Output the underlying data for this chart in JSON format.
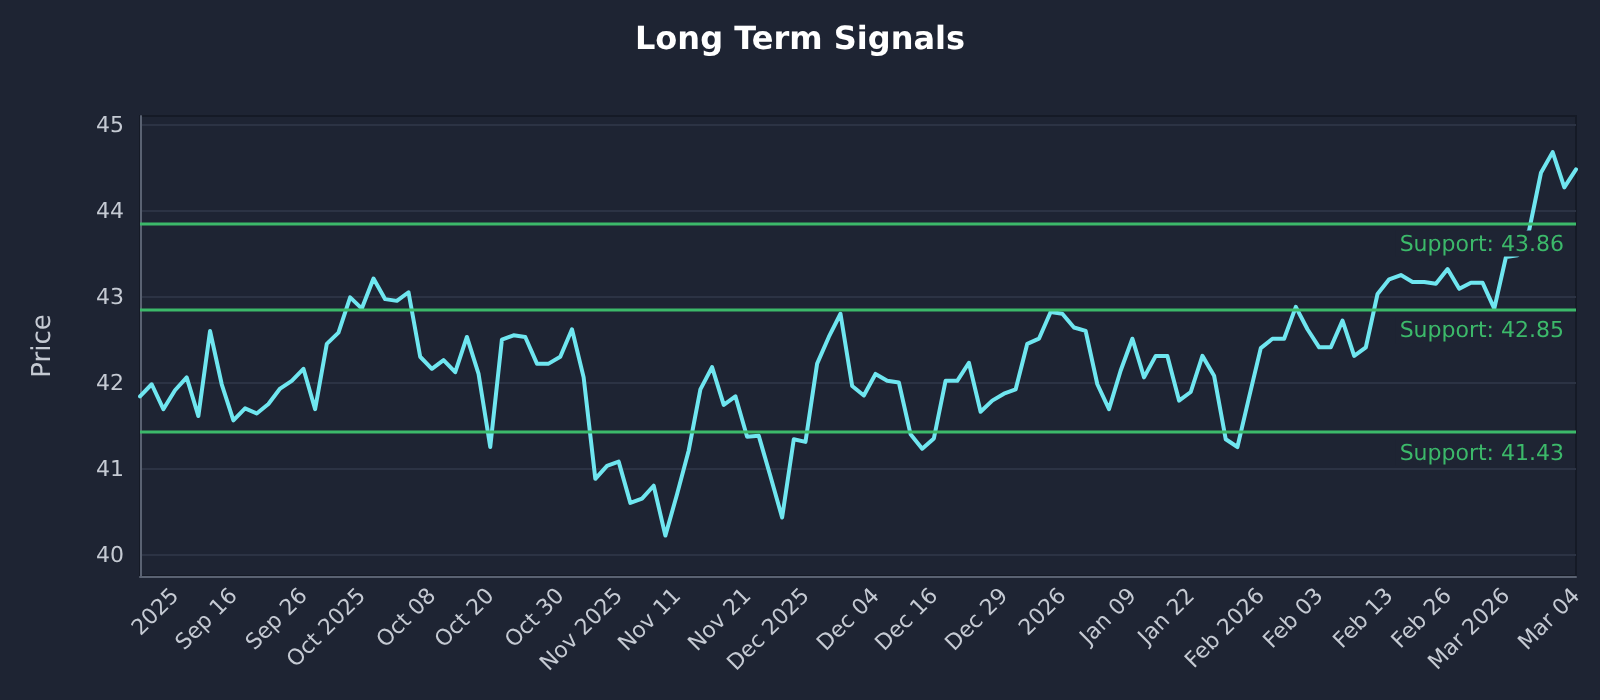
{
  "chart_data": {
    "type": "line",
    "title": "Long Term Signals",
    "ylabel": "Price",
    "categories": [
      null,
      null,
      null,
      "2025",
      null,
      null,
      null,
      null,
      "Sep 16",
      null,
      null,
      null,
      null,
      null,
      "Sep 26",
      null,
      null,
      null,
      null,
      "Oct 2025",
      null,
      null,
      null,
      null,
      null,
      "Oct 08",
      null,
      null,
      null,
      null,
      "Oct 20",
      null,
      null,
      null,
      null,
      null,
      "Oct 30",
      null,
      null,
      null,
      null,
      "Nov 2025",
      null,
      null,
      null,
      null,
      "Nov 11",
      null,
      null,
      null,
      null,
      null,
      "Nov 21",
      null,
      null,
      null,
      null,
      "Dec 2025",
      null,
      null,
      null,
      null,
      null,
      "Dec 04",
      null,
      null,
      null,
      null,
      "Dec 16",
      null,
      null,
      null,
      null,
      null,
      "Dec 29",
      null,
      null,
      null,
      null,
      "2026",
      null,
      null,
      null,
      null,
      null,
      "Jan 09",
      null,
      null,
      null,
      null,
      "Jan 22",
      null,
      null,
      null,
      null,
      null,
      "Feb 2026",
      null,
      null,
      null,
      null,
      "Feb 03",
      null,
      null,
      null,
      null,
      null,
      "Feb 13",
      null,
      null,
      null,
      null,
      "Feb 26",
      null,
      null,
      null,
      null,
      "Mar 2026",
      null,
      null,
      null,
      null,
      null,
      "Mar 04"
    ],
    "series": [
      {
        "color": "#6fe6f0",
        "values": [
          41.84,
          41.98,
          41.69,
          41.91,
          42.06,
          41.61,
          42.6,
          41.98,
          41.56,
          41.7,
          41.64,
          41.75,
          41.93,
          42.02,
          42.16,
          41.69,
          42.45,
          42.58,
          42.99,
          42.86,
          43.21,
          42.97,
          42.95,
          43.05,
          42.3,
          42.16,
          42.26,
          42.12,
          42.53,
          42.1,
          41.25,
          42.5,
          42.55,
          42.53,
          42.22,
          42.22,
          42.3,
          42.62,
          42.06,
          40.88,
          41.03,
          41.08,
          40.6,
          40.65,
          40.8,
          40.22,
          40.7,
          41.21,
          41.92,
          42.18,
          41.74,
          41.84,
          41.37,
          41.38,
          40.91,
          40.43,
          41.34,
          41.31,
          42.22,
          42.53,
          42.8,
          41.96,
          41.85,
          42.1,
          42.02,
          42.0,
          41.4,
          41.23,
          41.35,
          42.02,
          42.02,
          42.23,
          41.66,
          41.79,
          41.87,
          41.92,
          42.45,
          42.51,
          42.82,
          42.8,
          42.64,
          42.6,
          41.98,
          41.69,
          42.14,
          42.51,
          42.06,
          42.31,
          42.31,
          41.79,
          41.89,
          42.31,
          42.08,
          41.34,
          41.25,
          41.83,
          42.4,
          42.51,
          42.51,
          42.88,
          42.62,
          42.41,
          42.41,
          42.72,
          42.31,
          42.41,
          43.03,
          43.2,
          43.25,
          43.17,
          43.17,
          43.15,
          43.32,
          43.09,
          43.16,
          43.16,
          42.86,
          43.46,
          43.48,
          43.78,
          44.44,
          44.68,
          44.27,
          44.48
        ]
      }
    ],
    "ylim": [
      39.75,
      45.1
    ],
    "yticks": [
      40,
      41,
      42,
      43,
      44,
      45
    ],
    "grid": "y",
    "marker": "none",
    "line_style": "solid",
    "ref_lines": [
      {
        "axis": "y",
        "value": 43.86,
        "label": "Support: 43.86",
        "color": "#3cb96a"
      },
      {
        "axis": "y",
        "value": 42.85,
        "label": "Support: 42.85",
        "color": "#3cb96a"
      },
      {
        "axis": "y",
        "value": 41.43,
        "label": "Support: 41.43",
        "color": "#3cb96a"
      }
    ]
  }
}
